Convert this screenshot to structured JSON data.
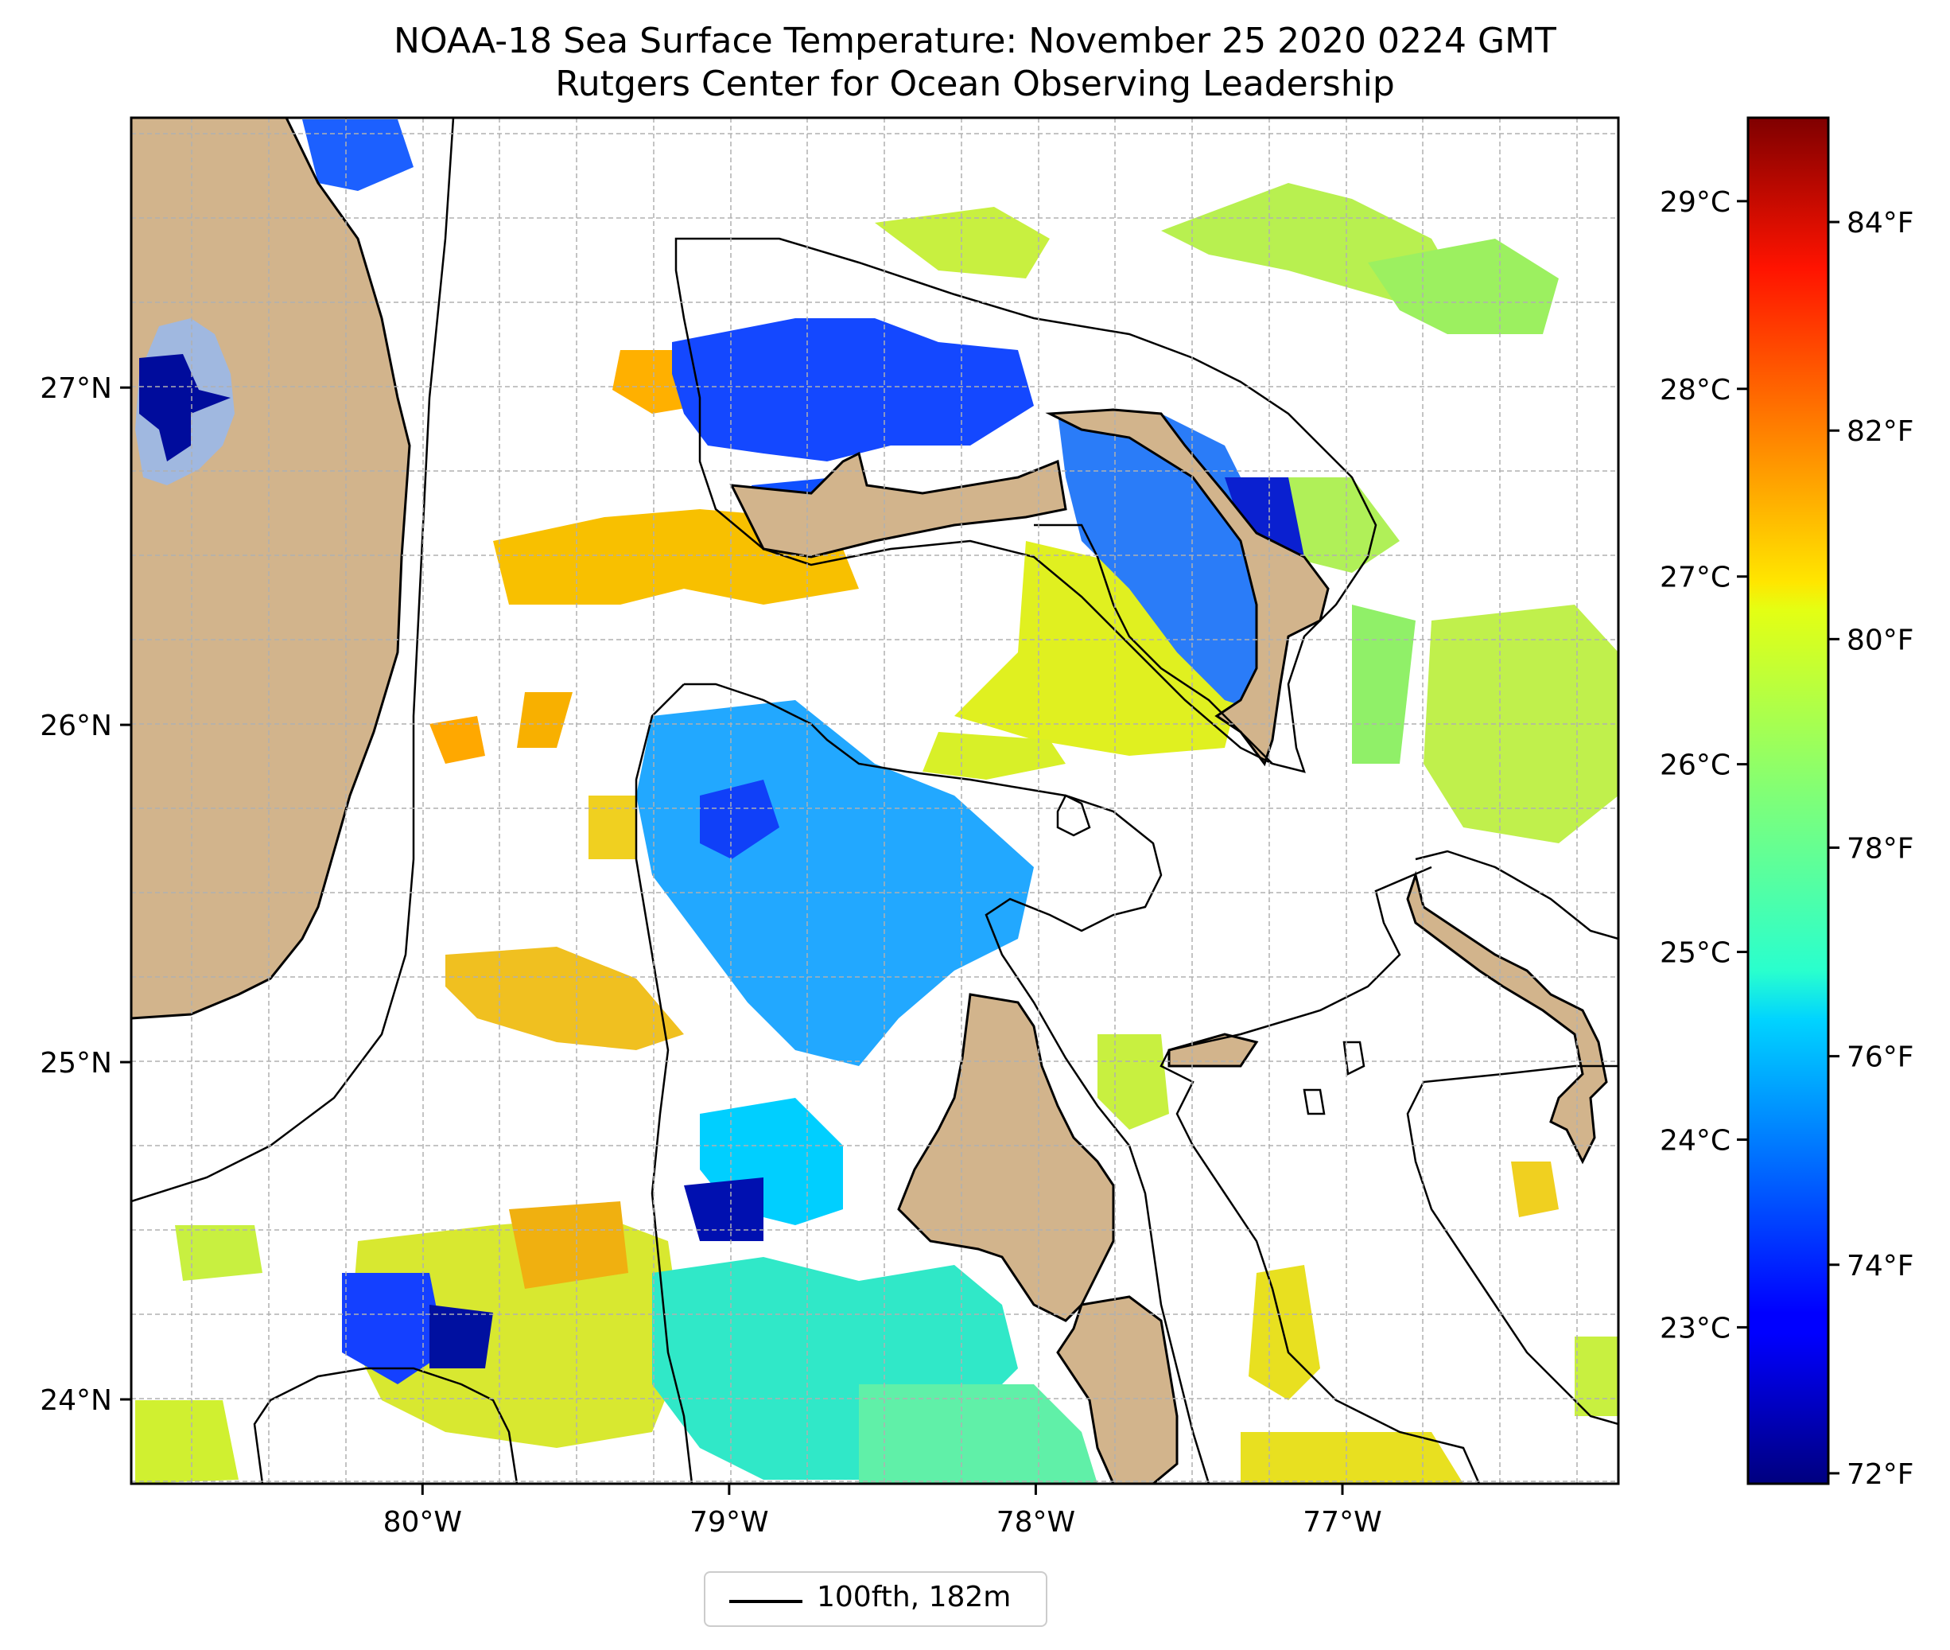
{
  "title": {
    "line1": "NOAA-18 Sea Surface Temperature: November 25 2020 0224 GMT",
    "line2": "Rutgers Center for Ocean Observing Leadership"
  },
  "axes": {
    "lon_ticks": [
      {
        "value": -80,
        "label": "80°W"
      },
      {
        "value": -79,
        "label": "79°W"
      },
      {
        "value": -78,
        "label": "78°W"
      },
      {
        "value": -77,
        "label": "77°W"
      }
    ],
    "lat_ticks": [
      {
        "value": 27,
        "label": "27°N"
      },
      {
        "value": 26,
        "label": "26°N"
      },
      {
        "value": 25,
        "label": "25°N"
      },
      {
        "value": 24,
        "label": "24°N"
      }
    ],
    "lon_range": [
      -80.95,
      -76.1
    ],
    "lat_range": [
      23.75,
      27.8
    ],
    "grid": true
  },
  "colorbar": {
    "celsius_labels": [
      "29°C",
      "28°C",
      "27°C",
      "26°C",
      "25°C",
      "24°C",
      "23°C"
    ],
    "fahrenheit_labels": [
      "84°F",
      "82°F",
      "80°F",
      "78°F",
      "76°F",
      "74°F",
      "72°F"
    ],
    "range_f": [
      71.9,
      85.0
    ],
    "colormap": "jet"
  },
  "legend": {
    "label": "100fth, 182m",
    "line_color": "#000000"
  },
  "colors": {
    "land": "#d2b48c",
    "lake": "#a0b8e0",
    "warm": "#ffb000",
    "mid": "#d8f030",
    "cool": "#30e8c8",
    "cold": "#1450ff",
    "coldest": "#000c9c"
  }
}
